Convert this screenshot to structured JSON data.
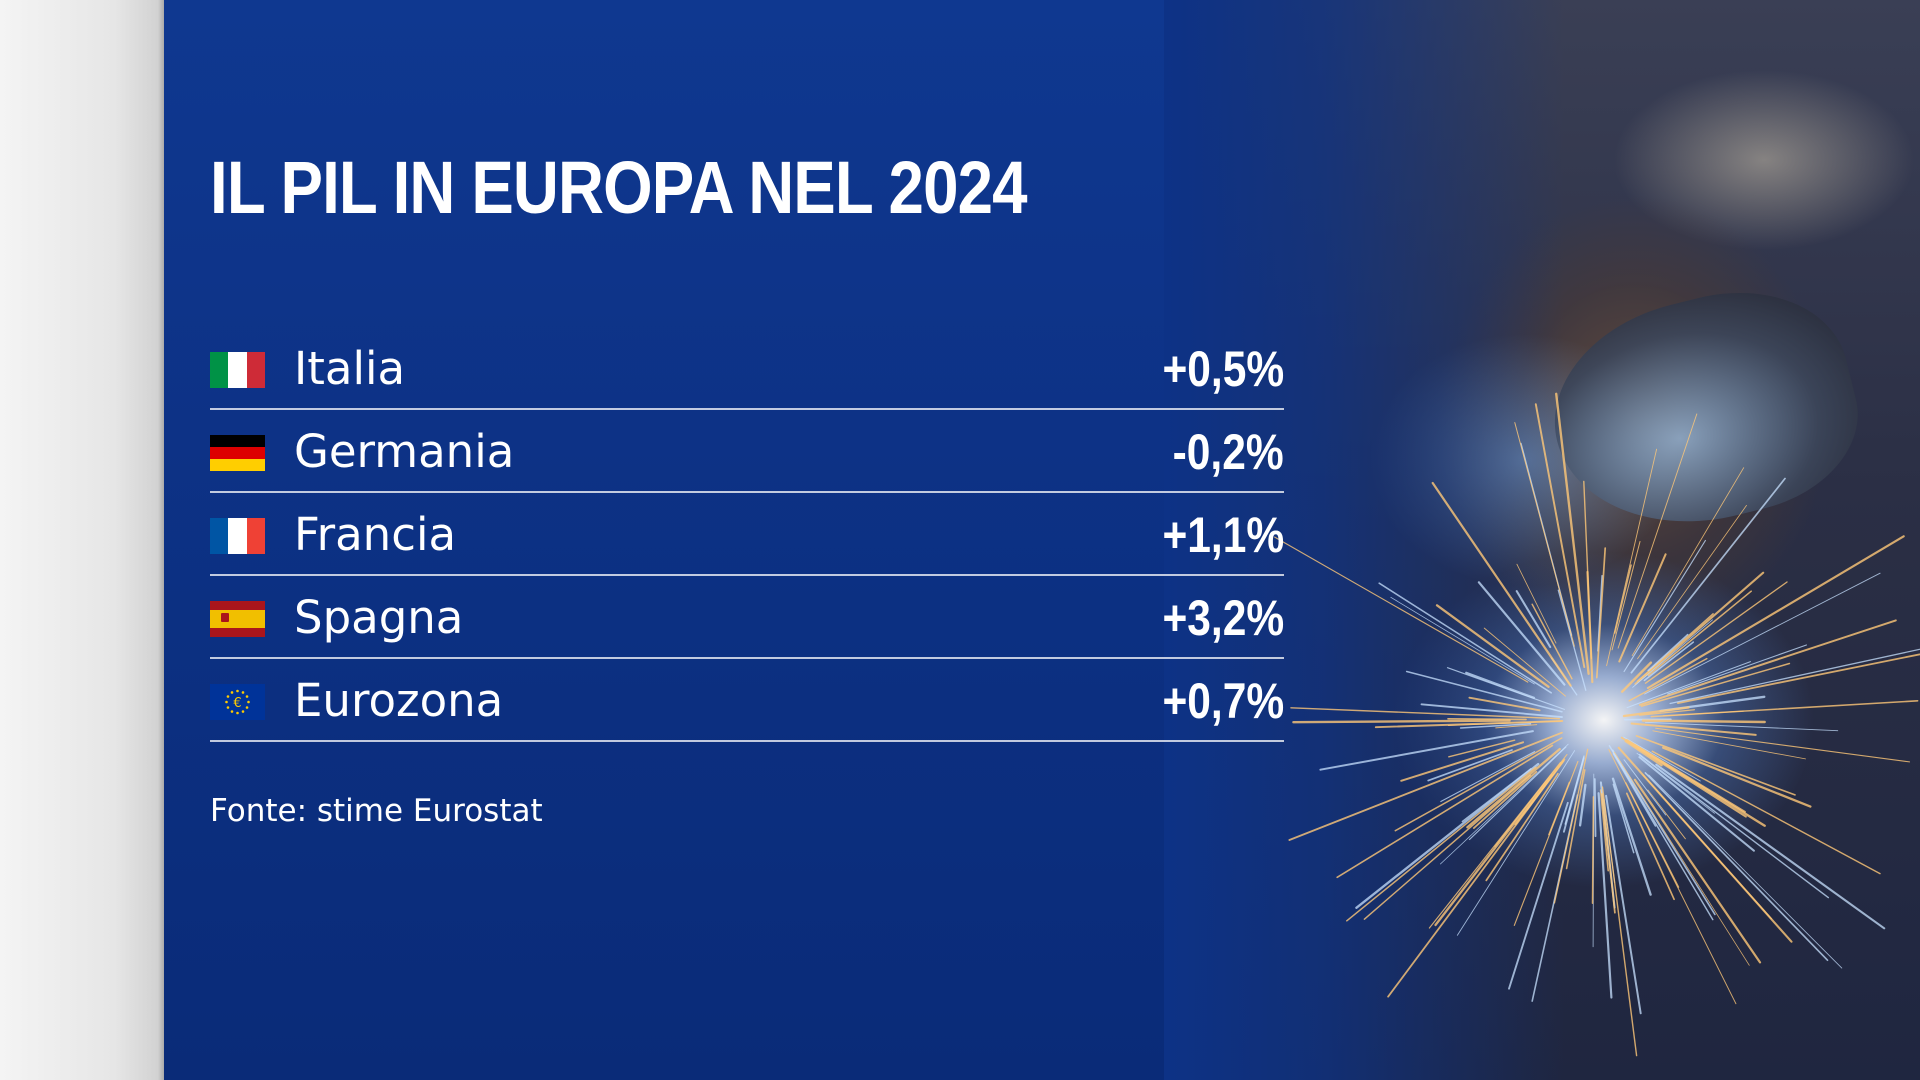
{
  "chart_data": {
    "type": "table",
    "title": "IL PIL IN EUROPA NEL 2024",
    "rows": [
      {
        "country": "Italia",
        "value_label": "+0,5%",
        "value": 0.5,
        "flag": "italy-flag",
        "flag_colors": [
          "#009246",
          "#ffffff",
          "#ce2b37"
        ]
      },
      {
        "country": "Germania",
        "value_label": "-0,2%",
        "value": -0.2,
        "flag": "germany-flag",
        "flag_colors": [
          "#000000",
          "#dd0000",
          "#ffce00"
        ]
      },
      {
        "country": "Francia",
        "value_label": "+1,1%",
        "value": 1.1,
        "flag": "france-flag",
        "flag_colors": [
          "#0055a4",
          "#ffffff",
          "#ef4135"
        ]
      },
      {
        "country": "Spagna",
        "value_label": "+3,2%",
        "value": 3.2,
        "flag": "spain-flag",
        "flag_colors": [
          "#aa151b",
          "#f1bf00",
          "#aa151b"
        ]
      },
      {
        "country": "Eurozona",
        "value_label": "+0,7%",
        "value": 0.7,
        "flag": "eu-flag",
        "flag_colors": [
          "#003399",
          "#ffcc00"
        ]
      }
    ],
    "source": "Fonte: stime Eurostat"
  },
  "colors": {
    "background": "#0d3286",
    "text": "#ffffff",
    "divider": "#ffffff"
  }
}
